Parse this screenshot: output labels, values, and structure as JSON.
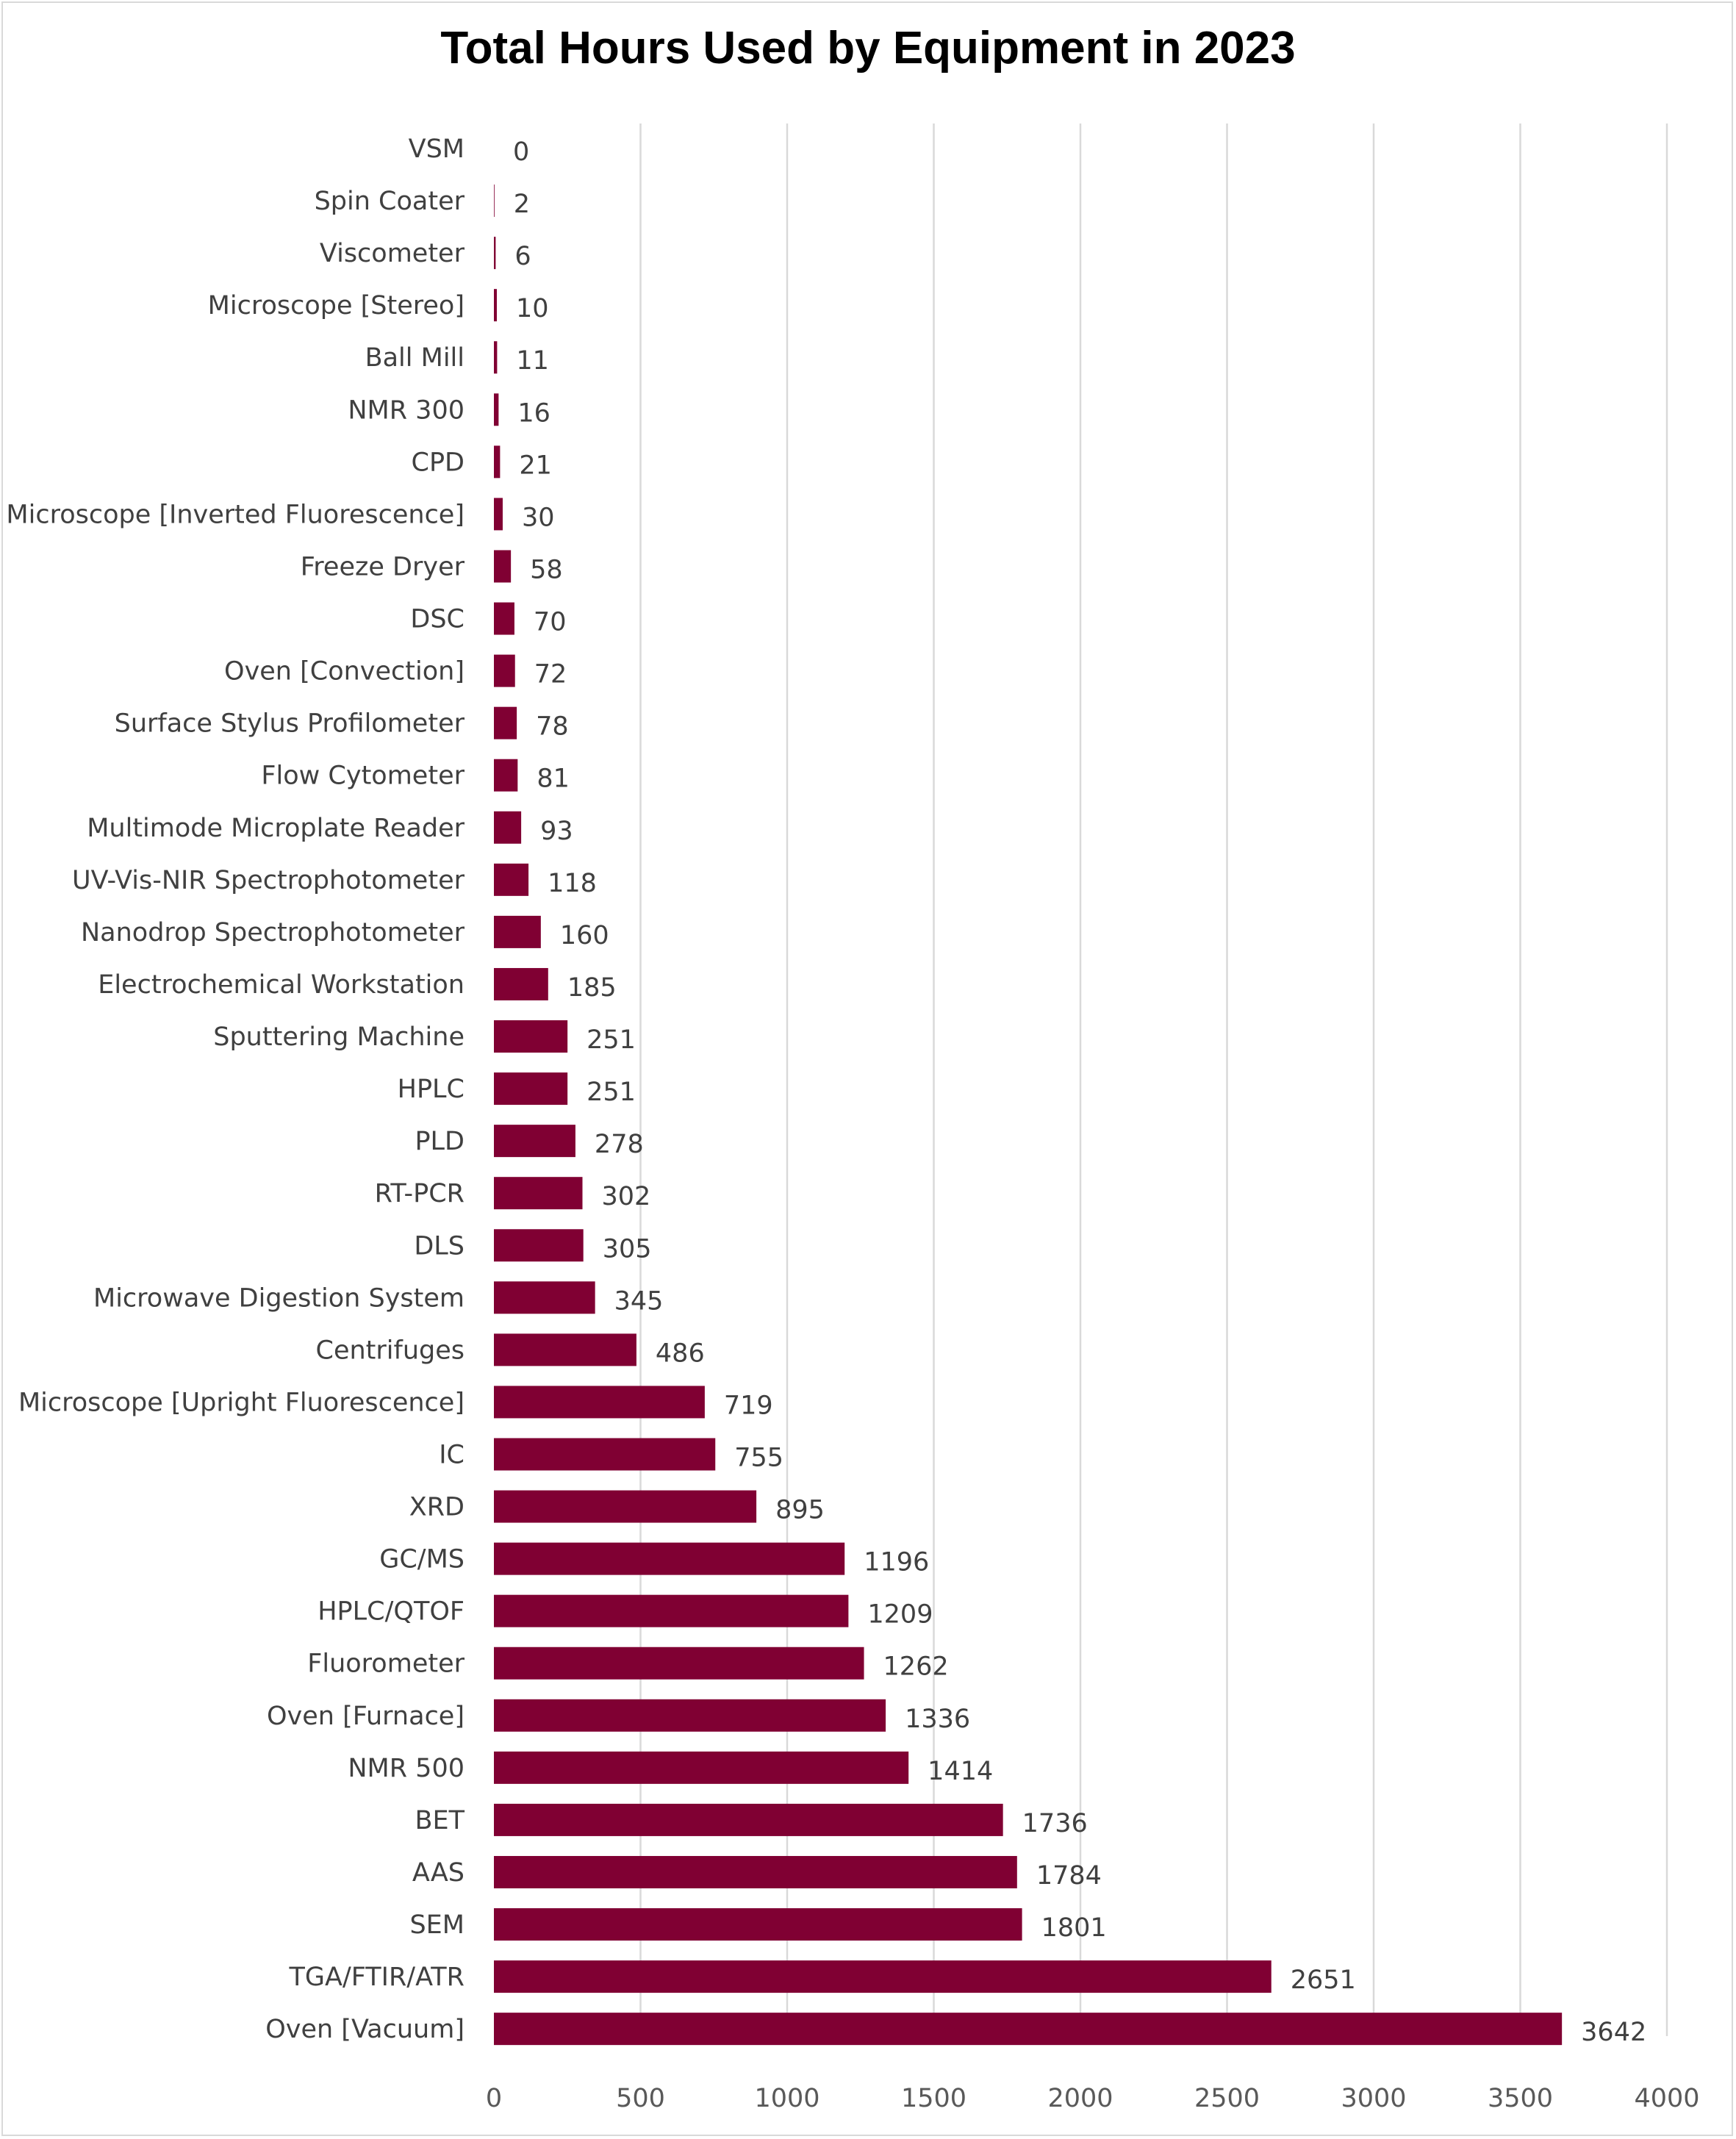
{
  "chart_data": {
    "type": "bar",
    "orientation": "horizontal",
    "title": "Total Hours Used by Equipment in 2023",
    "xlabel": "",
    "ylabel": "",
    "xlim": [
      0,
      4000
    ],
    "ticks": [
      0,
      500,
      1000,
      1500,
      2000,
      2500,
      3000,
      3500,
      4000
    ],
    "grid": "vertical",
    "bar_color": "#800033",
    "data_labels": true,
    "categories": [
      "VSM",
      "Spin Coater",
      "Viscometer",
      "Microscope [Stereo]",
      "Ball Mill",
      "NMR 300",
      "CPD",
      "Microscope [Inverted Fluorescence]",
      "Freeze Dryer",
      "DSC",
      "Oven [Convection]",
      "Surface Stylus Profilometer",
      "Flow Cytometer",
      "Multimode Microplate Reader",
      "UV-Vis-NIR Spectrophotometer",
      "Nanodrop Spectrophotometer",
      "Electrochemical Workstation",
      "Sputtering Machine",
      "HPLC",
      "PLD",
      "RT-PCR",
      "DLS",
      "Microwave Digestion System",
      "Centrifuges",
      "Microscope [Upright Fluorescence]",
      "IC",
      "XRD",
      "GC/MS",
      "HPLC/QTOF",
      "Fluorometer",
      "Oven [Furnace]",
      "NMR 500",
      "BET",
      "AAS",
      "SEM",
      "TGA/FTIR/ATR",
      "Oven [Vacuum]"
    ],
    "values": [
      0,
      2,
      6,
      10,
      11,
      16,
      21,
      30,
      58,
      70,
      72,
      78,
      81,
      93,
      118,
      160,
      185,
      251,
      251,
      278,
      302,
      305,
      345,
      486,
      719,
      755,
      895,
      1196,
      1209,
      1262,
      1336,
      1414,
      1736,
      1784,
      1801,
      2651,
      3642
    ]
  }
}
